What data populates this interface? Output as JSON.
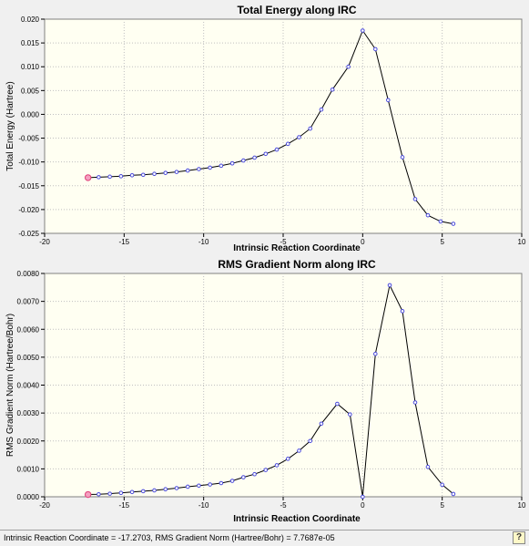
{
  "status_bar": {
    "text": "Intrinsic Reaction Coordinate = -17.2703, RMS Gradient Norm (Hartree/Bohr) = 7.7687e-05",
    "help_icon": "help-tooltip-icon"
  },
  "colors": {
    "plot_background": "#fffff2",
    "line": "#000000",
    "marker": "#4a4adc",
    "selected_marker": "#e0407a",
    "grid": "#c0c0c0"
  },
  "chart_data": [
    {
      "type": "line",
      "title": "Total Energy along IRC",
      "xlabel": "Intrinsic Reaction Coordinate",
      "ylabel": "Total Energy (Hartree)",
      "xlim": [
        -20,
        10
      ],
      "ylim": [
        -0.025,
        0.02
      ],
      "x_ticks": [
        -20,
        -15,
        -10,
        -5,
        0,
        5,
        10
      ],
      "y_ticks": [
        0.02,
        0.015,
        0.01,
        0.005,
        0.0,
        -0.005,
        -0.01,
        -0.015,
        -0.02,
        -0.025
      ],
      "y_tick_labels": [
        "0.020",
        "0.015",
        "0.010",
        "0.005",
        "0.000",
        "-0.005",
        "-0.010",
        "-0.015",
        "-0.020",
        "-0.025"
      ],
      "grid": true,
      "selected_index": 0,
      "x": [
        -17.27,
        -16.6,
        -15.9,
        -15.2,
        -14.5,
        -13.8,
        -13.1,
        -12.4,
        -11.7,
        -11.0,
        -10.3,
        -9.6,
        -8.9,
        -8.2,
        -7.5,
        -6.8,
        -6.1,
        -5.4,
        -4.7,
        -4.0,
        -3.3,
        -2.6,
        -1.9,
        -0.9,
        0.0,
        0.8,
        1.6,
        2.5,
        3.3,
        4.1,
        4.9,
        5.7
      ],
      "y": [
        -0.0133,
        -0.0132,
        -0.0131,
        -0.013,
        -0.0128,
        -0.0127,
        -0.0125,
        -0.0123,
        -0.0121,
        -0.0118,
        -0.0115,
        -0.0112,
        -0.0108,
        -0.0103,
        -0.0097,
        -0.0091,
        -0.0083,
        -0.0074,
        -0.0062,
        -0.0048,
        -0.003,
        0.001,
        0.0052,
        0.01,
        0.0176,
        0.0137,
        0.003,
        -0.009,
        -0.0178,
        -0.0212,
        -0.0225,
        -0.023
      ]
    },
    {
      "type": "line",
      "title": "RMS Gradient Norm along IRC",
      "xlabel": "Intrinsic Reaction Coordinate",
      "ylabel": "RMS Gradient Norm (Hartree/Bohr)",
      "xlim": [
        -20,
        10
      ],
      "ylim": [
        0,
        0.008
      ],
      "x_ticks": [
        -20,
        -15,
        -10,
        -5,
        0,
        5,
        10
      ],
      "y_ticks": [
        0.008,
        0.007,
        0.006,
        0.005,
        0.004,
        0.003,
        0.002,
        0.001,
        0.0
      ],
      "y_tick_labels": [
        "0.0080",
        "0.0070",
        "0.0060",
        "0.0050",
        "0.0040",
        "0.0030",
        "0.0020",
        "0.0010",
        "0.0000"
      ],
      "grid": true,
      "selected_index": 0,
      "x": [
        -17.27,
        -16.6,
        -15.9,
        -15.2,
        -14.5,
        -13.8,
        -13.1,
        -12.4,
        -11.7,
        -11.0,
        -10.3,
        -9.6,
        -8.9,
        -8.2,
        -7.5,
        -6.8,
        -6.1,
        -5.4,
        -4.7,
        -4.0,
        -3.3,
        -2.6,
        -1.6,
        -0.8,
        0.0,
        0.8,
        1.7,
        2.5,
        3.3,
        4.1,
        5.0,
        5.7
      ],
      "y": [
        8e-05,
        9e-05,
        0.00011,
        0.00014,
        0.00017,
        0.0002,
        0.00023,
        0.00027,
        0.00031,
        0.00036,
        0.0004,
        0.00044,
        0.00049,
        0.00057,
        0.0007,
        0.00081,
        0.00096,
        0.00113,
        0.00136,
        0.00165,
        0.002,
        0.00262,
        0.00333,
        0.00295,
        0.0,
        0.00512,
        0.00758,
        0.00665,
        0.00338,
        0.00107,
        0.00043,
        0.0001
      ]
    }
  ]
}
